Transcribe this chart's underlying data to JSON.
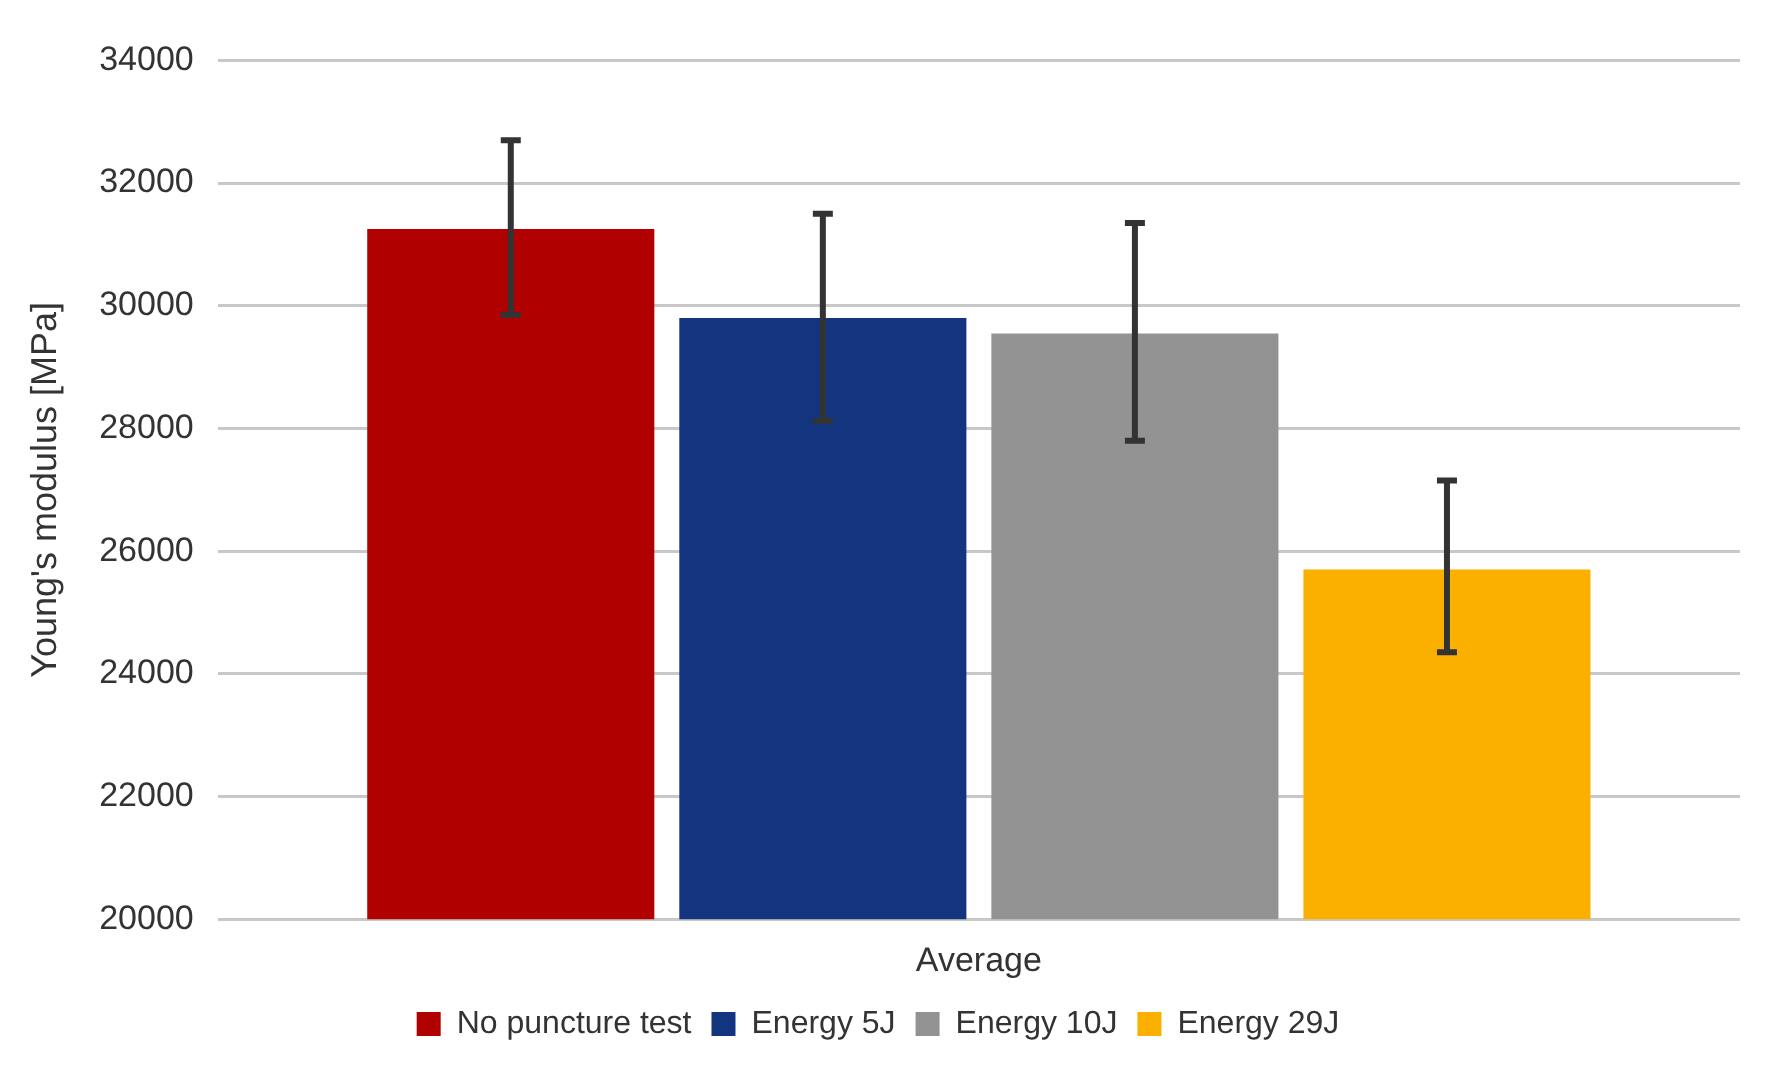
{
  "chart_data": {
    "type": "bar",
    "categories": [
      "Average"
    ],
    "ylabel": "Young's modulus [MPa]",
    "series": [
      {
        "name": "No puncture test",
        "color": "#b00000",
        "values": [
          31250
        ],
        "errors": [
          [
            29850,
            32700
          ]
        ]
      },
      {
        "name": "Energy 5J",
        "color": "#13357f",
        "values": [
          29800
        ],
        "errors": [
          [
            28120,
            31500
          ]
        ]
      },
      {
        "name": "Energy 10J",
        "color": "#939393",
        "values": [
          29550
        ],
        "errors": [
          [
            27800,
            31350
          ]
        ]
      },
      {
        "name": "Energy 29J",
        "color": "#fbb000",
        "values": [
          25700
        ],
        "errors": [
          [
            24350,
            27150
          ]
        ]
      }
    ],
    "ylim": [
      20000,
      34000
    ],
    "yticks": [
      20000,
      22000,
      24000,
      26000,
      28000,
      30000,
      32000,
      34000
    ],
    "grid": "y",
    "legend": "bottom"
  }
}
